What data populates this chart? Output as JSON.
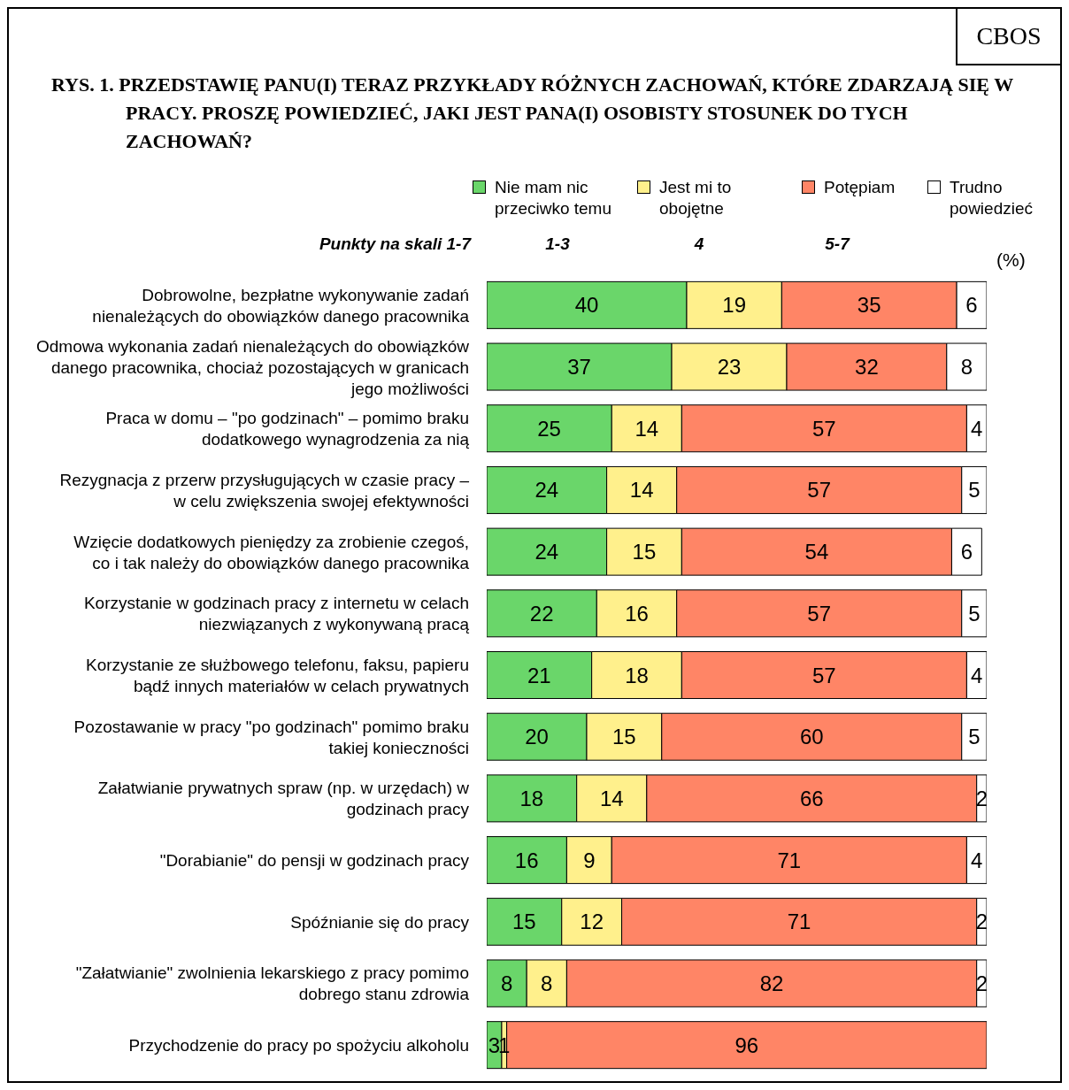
{
  "chart_data": {
    "type": "bar",
    "orientation": "horizontal",
    "stacked": true,
    "title": "RYS. 1. PRZEDSTAWIĘ PANU(I) TERAZ PRZYKŁADY RÓŻNYCH ZACHOWAŃ, KTÓRE ZDARZAJĄ SIĘ W PRACY. PROSZĘ POWIEDZIEĆ, JAKI JEST PANA(I) OSOBISTY STOSUNEK DO TYCH ZACHOWAŃ?",
    "categories": [
      "Dobrowolne, bezpłatne wykonywanie zadań nienależących do obowiązków danego pracownika",
      "Odmowa wykonania zadań nienależących do obowiązków danego pracownika, chociaż pozostających w granicach jego możliwości",
      "Praca w domu – \"po godzinach\" – pomimo braku dodatkowego wynagrodzenia za nią",
      "Rezygnacja z przerw przysługujących w czasie pracy – w celu zwiększenia swojej efektywności",
      "Wzięcie dodatkowych pieniędzy za zrobienie czegoś, co i tak należy do obowiązków danego pracownika",
      "Korzystanie w godzinach pracy z internetu w celach niezwiązanych z wykonywaną pracą",
      "Korzystanie ze służbowego telefonu, faksu, papieru bądź innych materiałów w celach prywatnych",
      "Pozostawanie w pracy \"po godzinach\" pomimo braku takiej konieczności",
      "Załatwianie prywatnych spraw (np. w urzędach) w godzinach pracy",
      "\"Dorabianie\" do pensji w godzinach pracy",
      "Spóźnianie się do pracy",
      "\"Załatwianie\" zwolnienia lekarskiego z pracy pomimo dobrego stanu zdrowia",
      "Przychodzenie do pracy po spożyciu alkoholu"
    ],
    "series": [
      {
        "name": "Nie mam nic przeciwko temu",
        "color": "#6ad66a",
        "values": [
          40,
          37,
          25,
          24,
          24,
          22,
          21,
          20,
          18,
          16,
          15,
          8,
          3
        ]
      },
      {
        "name": "Jest mi to obojętne",
        "color": "#fff08c",
        "values": [
          19,
          23,
          14,
          14,
          15,
          16,
          18,
          15,
          14,
          9,
          12,
          8,
          1
        ]
      },
      {
        "name": "Potępiam",
        "color": "#ff8566",
        "values": [
          35,
          32,
          57,
          57,
          54,
          57,
          57,
          60,
          66,
          71,
          71,
          82,
          96
        ]
      },
      {
        "name": "Trudno powiedzieć",
        "color": "#ffffff",
        "values": [
          6,
          8,
          4,
          5,
          6,
          5,
          4,
          5,
          2,
          4,
          2,
          2,
          null
        ]
      }
    ],
    "xlim": [
      0,
      100
    ],
    "tick_labels": "y",
    "data_labels": true,
    "legend": "top",
    "grid": false,
    "annotations": [
      "Punkty na skali 1-7",
      "1-3",
      "4",
      "5-7",
      "(%)",
      "CBOS"
    ]
  }
}
